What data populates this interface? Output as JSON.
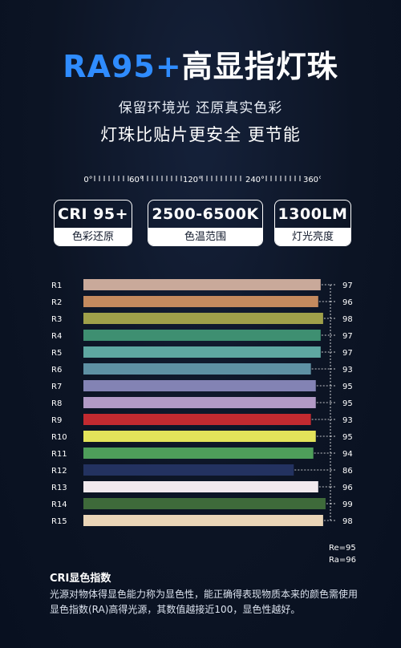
{
  "title": {
    "part1": "RA95+",
    "part2": "高显指灯珠"
  },
  "subtitle1": "保留环境光 还原真实色彩",
  "subtitle2": "灯珠比贴片更安全 更节能",
  "scale": {
    "labels": [
      "0°",
      "60°",
      "120°",
      "240°",
      "360°"
    ]
  },
  "cards": [
    {
      "main": "CRI 95+",
      "sub": "色彩还原"
    },
    {
      "main": "2500-6500K",
      "sub": "色温范围"
    },
    {
      "main": "1300LM",
      "sub": "灯光亮度"
    }
  ],
  "chart_data": {
    "type": "bar",
    "orientation": "horizontal",
    "title": "",
    "xlabel": "",
    "ylabel": "",
    "categories": [
      "R1",
      "R2",
      "R3",
      "R4",
      "R5",
      "R6",
      "R7",
      "R8",
      "R9",
      "R10",
      "R11",
      "R12",
      "R13",
      "R14",
      "R15"
    ],
    "values": [
      97,
      96,
      98,
      97,
      97,
      93,
      95,
      95,
      93,
      95,
      94,
      86,
      96,
      99,
      98
    ],
    "colors": [
      "#c9a99a",
      "#c48a5e",
      "#9fa04a",
      "#3e8f71",
      "#5ea7a1",
      "#5e91a4",
      "#8383b4",
      "#b29ac6",
      "#c22a30",
      "#e3e35a",
      "#4e9e5a",
      "#233260",
      "#f1e9ee",
      "#3e6a3a",
      "#ead5b7"
    ],
    "xlim": [
      0,
      100
    ]
  },
  "ra": {
    "line1": "Re=95",
    "line2": "Ra=96"
  },
  "cri": {
    "title": "CRI显色指数",
    "text": "光源对物体得显色能力称为显色性，能正确得表现物质本来的颜色需使用显色指数(RA)高得光源，其数值越接近100，显色性越好。"
  }
}
